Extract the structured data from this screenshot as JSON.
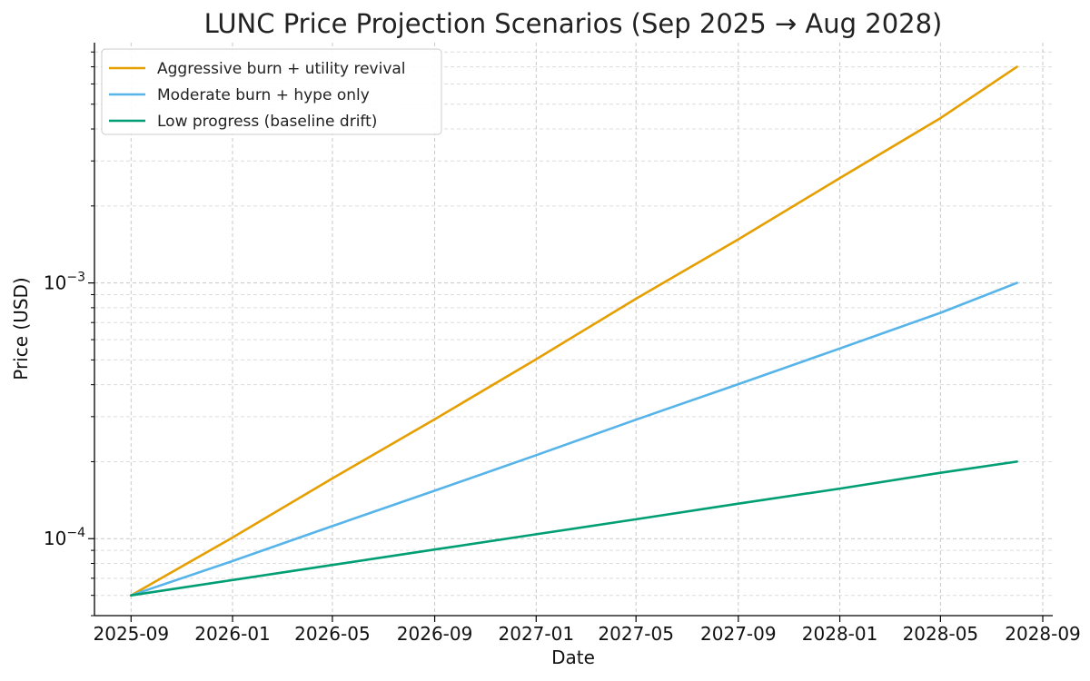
{
  "chart_data": {
    "type": "line",
    "title": "LUNC Price Projection Scenarios (Sep 2025 → Aug 2028)",
    "xlabel": "Date",
    "ylabel": "Price (USD)",
    "x_scale": "time",
    "y_scale": "log",
    "xlim": [
      "2025-07-19",
      "2028-09-13"
    ],
    "ylim": [
      5e-05,
      0.0087
    ],
    "x_ticks": [
      {
        "date": "2025-09-01",
        "label": "2025-09"
      },
      {
        "date": "2026-01-01",
        "label": "2026-01"
      },
      {
        "date": "2026-05-01",
        "label": "2026-05"
      },
      {
        "date": "2026-09-01",
        "label": "2026-09"
      },
      {
        "date": "2027-01-01",
        "label": "2027-01"
      },
      {
        "date": "2027-05-01",
        "label": "2027-05"
      },
      {
        "date": "2027-09-01",
        "label": "2027-09"
      },
      {
        "date": "2028-01-01",
        "label": "2028-01"
      },
      {
        "date": "2028-05-01",
        "label": "2028-05"
      },
      {
        "date": "2028-09-01",
        "label": "2028-09"
      }
    ],
    "y_major_ticks": [
      {
        "value": 0.0001,
        "base": "10",
        "exp": "−4"
      },
      {
        "value": 0.001,
        "base": "10",
        "exp": "−3"
      }
    ],
    "y_minor_ticks": [
      5e-05,
      6e-05,
      7e-05,
      8e-05,
      9e-05,
      0.0002,
      0.0003,
      0.0004,
      0.0005,
      0.0006,
      0.0007,
      0.0008,
      0.0009,
      0.002,
      0.003,
      0.004,
      0.005,
      0.006,
      0.007,
      0.008
    ],
    "grid": true,
    "legend_position": "top-left",
    "series": [
      {
        "name": "Aggressive burn + utility revival",
        "color": "#E69F00",
        "points": [
          {
            "date": "2025-09-01",
            "value": 6e-05
          },
          {
            "date": "2026-01-01",
            "value": 0.000101
          },
          {
            "date": "2026-05-01",
            "value": 0.000172
          },
          {
            "date": "2026-09-01",
            "value": 0.000293
          },
          {
            "date": "2027-01-01",
            "value": 0.000503
          },
          {
            "date": "2027-05-01",
            "value": 0.000867
          },
          {
            "date": "2027-09-01",
            "value": 0.00148
          },
          {
            "date": "2028-01-01",
            "value": 0.00257
          },
          {
            "date": "2028-05-01",
            "value": 0.00441
          },
          {
            "date": "2028-08-01",
            "value": 0.007
          }
        ]
      },
      {
        "name": "Moderate burn + hype only",
        "color": "#56B4E9",
        "points": [
          {
            "date": "2025-09-01",
            "value": 6e-05
          },
          {
            "date": "2026-01-01",
            "value": 8.17e-05
          },
          {
            "date": "2026-05-01",
            "value": 0.000112
          },
          {
            "date": "2026-09-01",
            "value": 0.000154
          },
          {
            "date": "2027-01-01",
            "value": 0.000212
          },
          {
            "date": "2027-05-01",
            "value": 0.000292
          },
          {
            "date": "2027-09-01",
            "value": 0.000402
          },
          {
            "date": "2028-01-01",
            "value": 0.000554
          },
          {
            "date": "2028-05-01",
            "value": 0.000764
          },
          {
            "date": "2028-08-01",
            "value": 0.001
          }
        ]
      },
      {
        "name": "Low progress (baseline drift)",
        "color": "#009E73",
        "points": [
          {
            "date": "2025-09-01",
            "value": 6e-05
          },
          {
            "date": "2026-01-01",
            "value": 6.89e-05
          },
          {
            "date": "2026-05-01",
            "value": 7.89e-05
          },
          {
            "date": "2026-09-01",
            "value": 9.07e-05
          },
          {
            "date": "2027-01-01",
            "value": 0.000104
          },
          {
            "date": "2027-05-01",
            "value": 0.000119
          },
          {
            "date": "2027-09-01",
            "value": 0.000137
          },
          {
            "date": "2028-01-01",
            "value": 0.000157
          },
          {
            "date": "2028-05-01",
            "value": 0.000181
          },
          {
            "date": "2028-08-01",
            "value": 0.0002
          }
        ]
      }
    ]
  }
}
